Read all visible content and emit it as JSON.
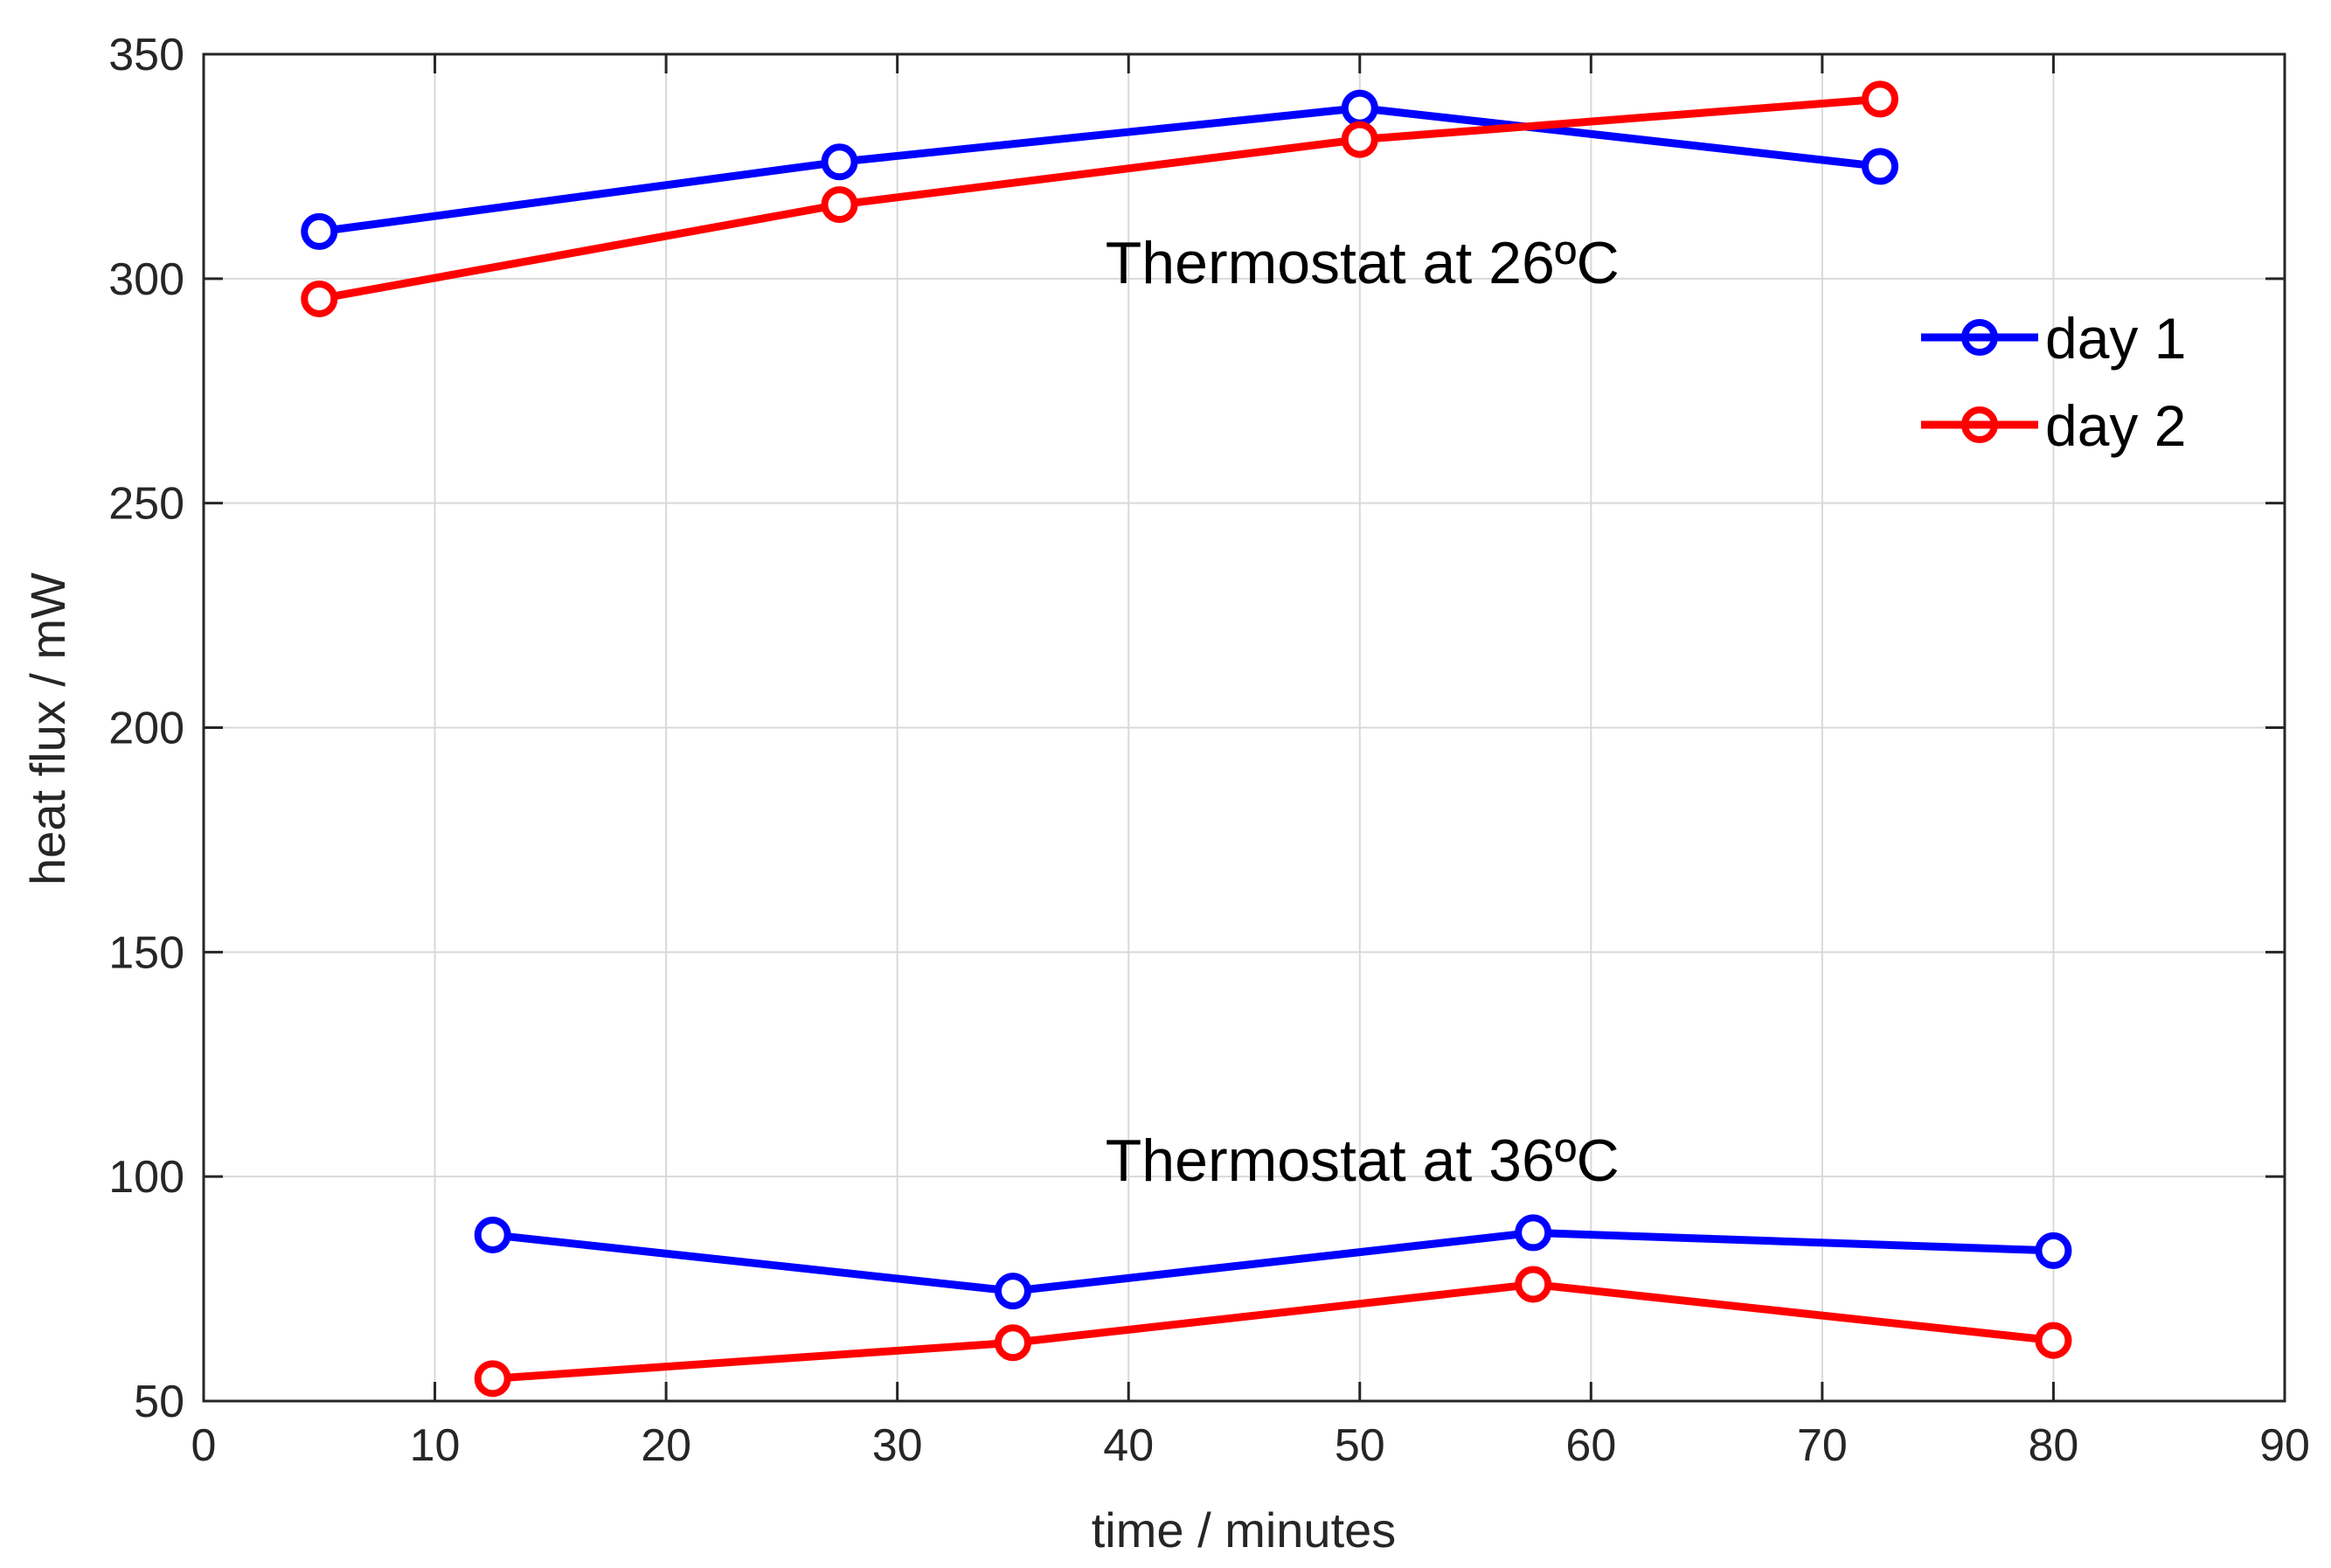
{
  "chart_data": {
    "type": "line",
    "title": "",
    "xlabel": "time / minutes",
    "ylabel": "heat flux / mW",
    "xlim": [
      0,
      90
    ],
    "ylim": [
      50,
      350
    ],
    "xticks": [
      0,
      10,
      20,
      30,
      40,
      50,
      60,
      70,
      80,
      90
    ],
    "yticks": [
      50,
      100,
      150,
      200,
      250,
      300,
      350
    ],
    "grid": true,
    "legend": {
      "placement": "top-right",
      "entries": [
        "day 1",
        "day 2"
      ]
    },
    "series": [
      {
        "name": "day 1",
        "color": "#0000ff",
        "group": "Thermostat at 26ºC",
        "in_legend": true,
        "x": [
          5,
          27.5,
          50,
          72.5
        ],
        "y": [
          310.5,
          326,
          338,
          325
        ]
      },
      {
        "name": "day 2",
        "color": "#ff0000",
        "group": "Thermostat at 26ºC",
        "in_legend": true,
        "x": [
          5,
          27.5,
          50,
          72.5
        ],
        "y": [
          295.5,
          316.5,
          331,
          340
        ]
      },
      {
        "name": "day 1",
        "color": "#0000ff",
        "group": "Thermostat at 36ºC",
        "in_legend": false,
        "x": [
          12.5,
          35,
          57.5,
          80
        ],
        "y": [
          87,
          74.5,
          87.5,
          83.5
        ]
      },
      {
        "name": "day 2",
        "color": "#ff0000",
        "group": "Thermostat at 36ºC",
        "in_legend": false,
        "x": [
          12.5,
          35,
          57.5,
          80
        ],
        "y": [
          55,
          63,
          76,
          63.5
        ]
      }
    ],
    "annotations": [
      {
        "text": "Thermostat at 26ºC",
        "x": 39,
        "y": 300
      },
      {
        "text": "Thermostat at 36ºC",
        "x": 39,
        "y": 100
      }
    ]
  }
}
